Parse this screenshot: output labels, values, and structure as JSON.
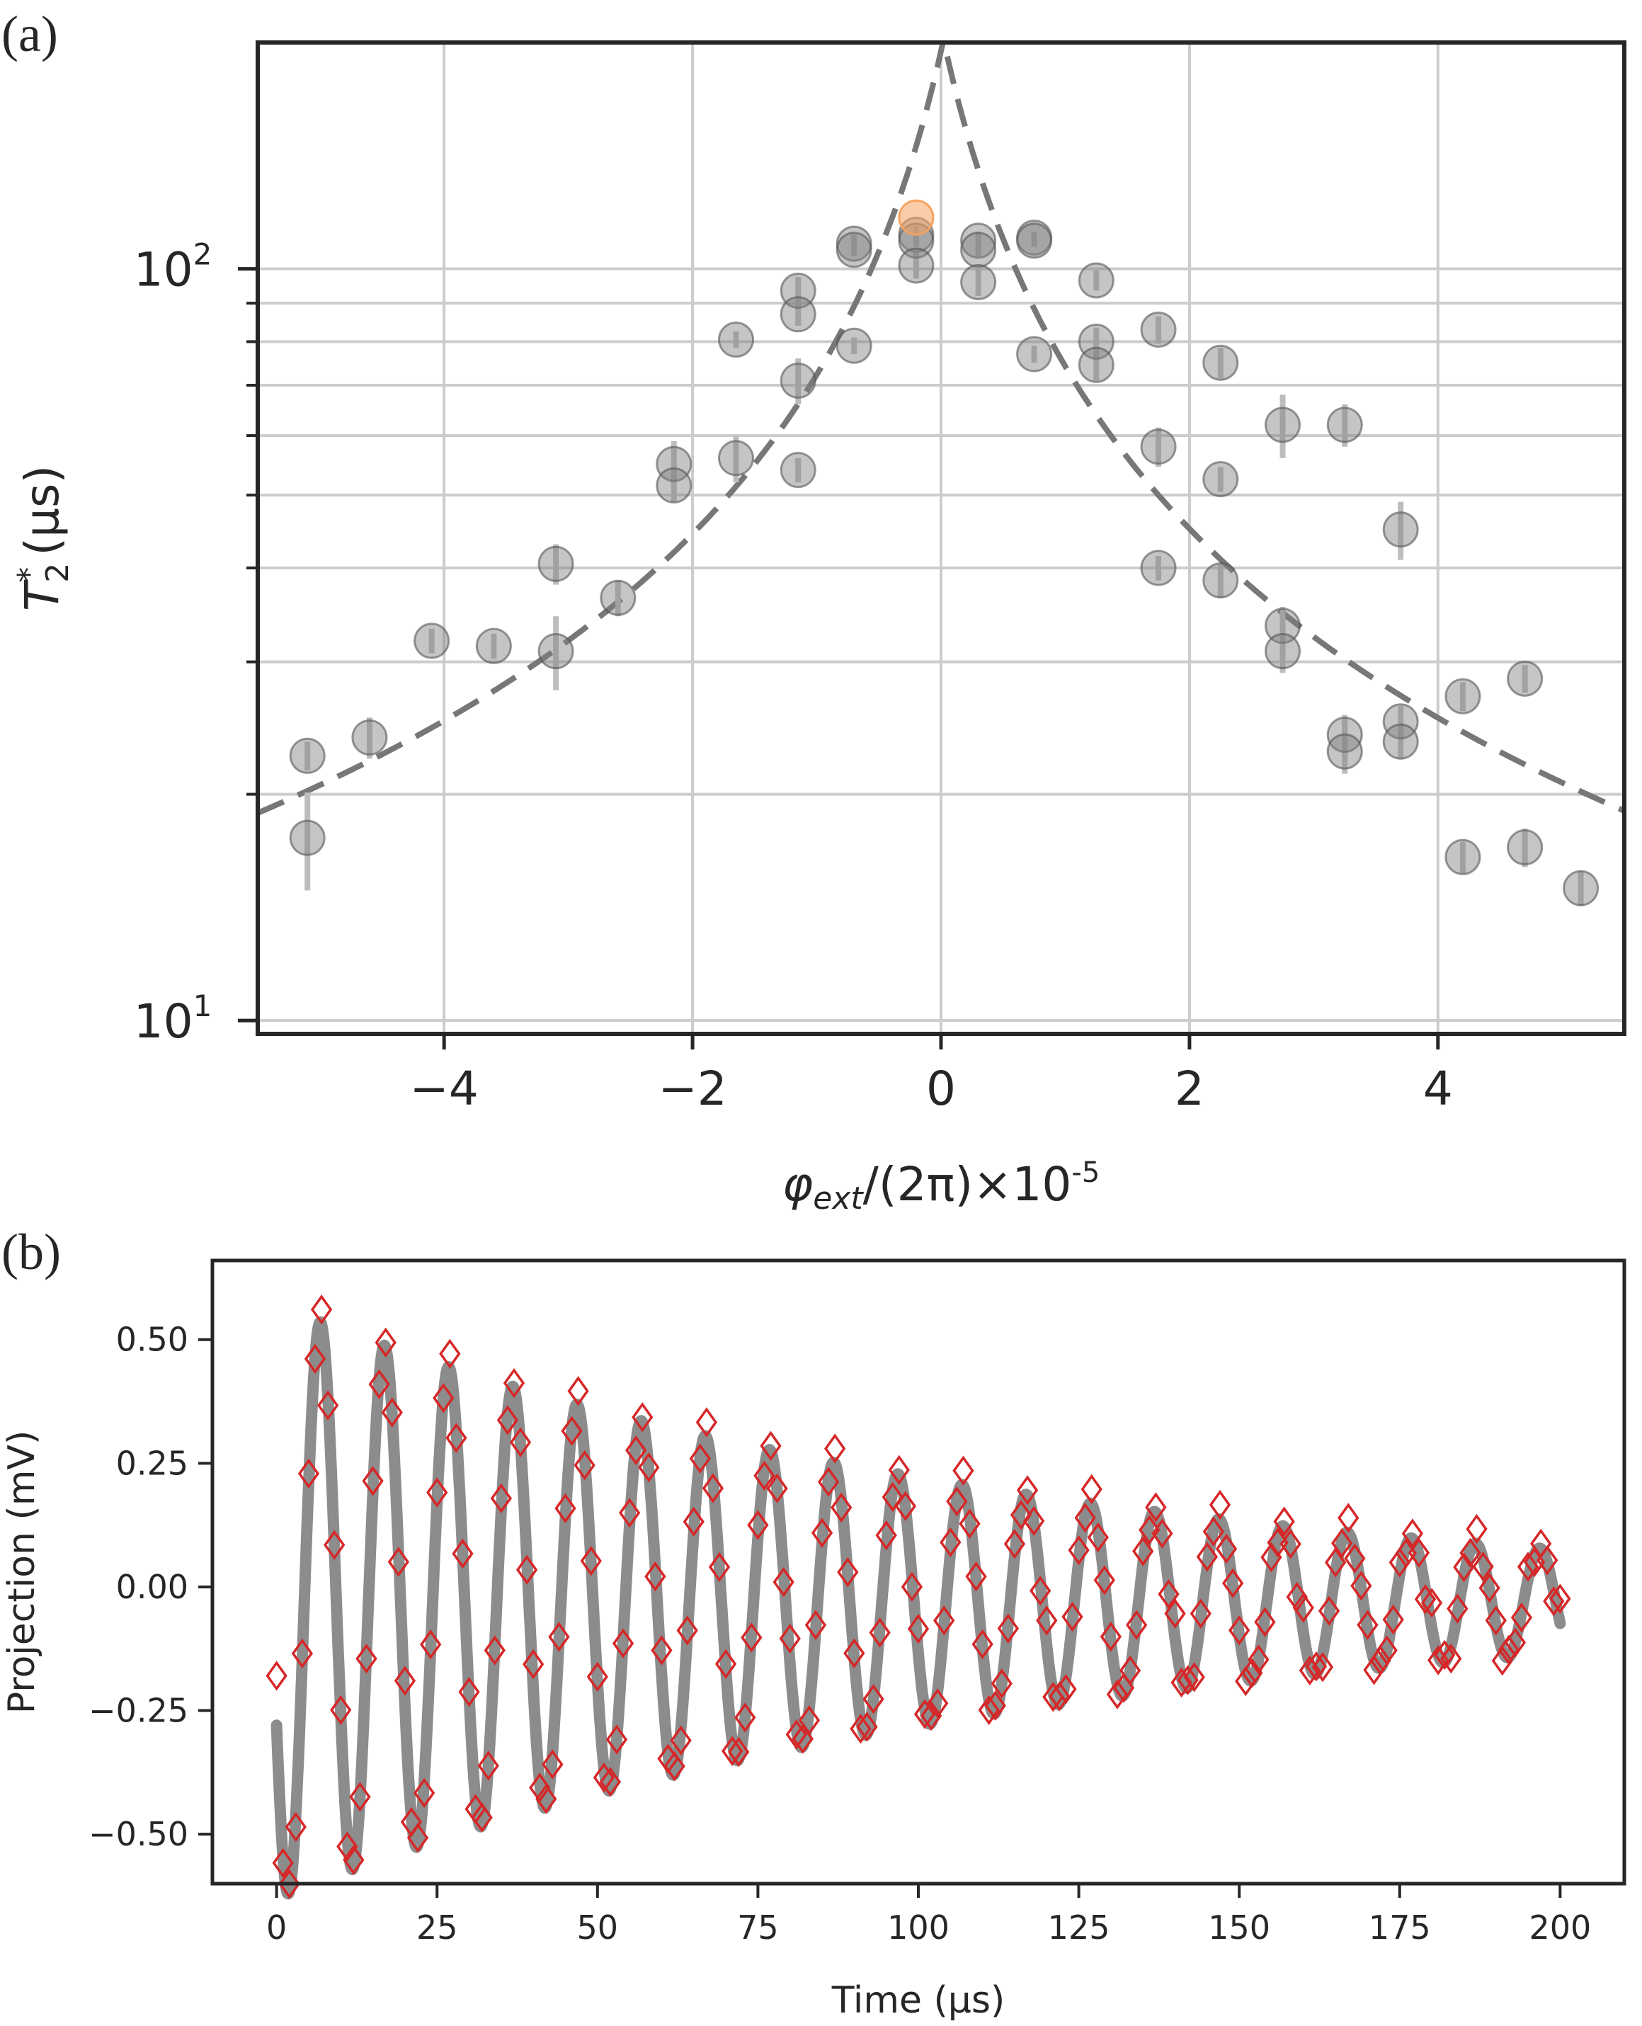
{
  "chart_data": [
    {
      "panel_label": "(a)",
      "type": "scatter",
      "xlabel": {
        "main": "φ",
        "sub": "ext",
        "rest": "/(2π)×10",
        "exp": "-5"
      },
      "ylabel": {
        "main": "T",
        "sub": "2",
        "sup": "*",
        "unit": "(μs)"
      },
      "yscale": "log",
      "xlim": [
        -5.5,
        5.5
      ],
      "ylim": [
        9.6,
        200
      ],
      "xticks": [
        -4,
        -2,
        0,
        2,
        4
      ],
      "xtick_labels": [
        "−4",
        "−2",
        "0",
        "2",
        "4"
      ],
      "yticks_major": [
        10,
        100
      ],
      "ytick_labels": [
        {
          "base": "10",
          "exp": "1"
        },
        {
          "base": "10",
          "exp": "2"
        }
      ],
      "yticks_minor": [
        20,
        30,
        40,
        50,
        60,
        70,
        80,
        90
      ],
      "grid": true,
      "points": [
        {
          "x": -5.1,
          "y": 22.5,
          "err": 1.0
        },
        {
          "x": -5.1,
          "y": 17.5,
          "err": 2.6
        },
        {
          "x": -4.6,
          "y": 23.8,
          "err": 1.5
        },
        {
          "x": -4.1,
          "y": 32.0,
          "err": 1.2
        },
        {
          "x": -3.6,
          "y": 31.5,
          "err": 1.2
        },
        {
          "x": -3.1,
          "y": 40.5,
          "err": 2.5
        },
        {
          "x": -3.1,
          "y": 31.0,
          "err": 3.5
        },
        {
          "x": -2.6,
          "y": 36.5,
          "err": 2.0
        },
        {
          "x": -2.15,
          "y": 55.0,
          "err": 4.0
        },
        {
          "x": -2.15,
          "y": 51.5,
          "err": 2.5
        },
        {
          "x": -1.65,
          "y": 80.5,
          "err": 2.0
        },
        {
          "x": -1.65,
          "y": 56.0,
          "err": 4.0
        },
        {
          "x": -1.15,
          "y": 93.5,
          "err": 4.0
        },
        {
          "x": -1.15,
          "y": 87.0,
          "err": 3.0
        },
        {
          "x": -1.15,
          "y": 71.0,
          "err": 5.0
        },
        {
          "x": -1.15,
          "y": 54.0,
          "err": 2.0
        },
        {
          "x": -0.7,
          "y": 108.0,
          "err": 3.0
        },
        {
          "x": -0.7,
          "y": 106.0,
          "err": 2.0
        },
        {
          "x": -0.7,
          "y": 79.0,
          "err": 2.0
        },
        {
          "x": -0.2,
          "y": 111.0,
          "err": 3.0
        },
        {
          "x": -0.2,
          "y": 109.0,
          "err": 2.0
        },
        {
          "x": -0.2,
          "y": 101.0,
          "err": 4.0
        },
        {
          "x": 0.3,
          "y": 109.0,
          "err": 3.0
        },
        {
          "x": 0.3,
          "y": 106.0,
          "err": 2.0
        },
        {
          "x": 0.3,
          "y": 96.0,
          "err": 4.0
        },
        {
          "x": 0.75,
          "y": 110.0,
          "err": 2.0
        },
        {
          "x": 0.75,
          "y": 109.0,
          "err": 2.0
        },
        {
          "x": 0.75,
          "y": 77.0,
          "err": 2.0
        },
        {
          "x": 1.25,
          "y": 96.5,
          "err": 3.0
        },
        {
          "x": 1.25,
          "y": 80.0,
          "err": 3.5
        },
        {
          "x": 1.25,
          "y": 74.5,
          "err": 3.5
        },
        {
          "x": 1.75,
          "y": 83.0,
          "err": 3.5
        },
        {
          "x": 1.75,
          "y": 58.0,
          "err": 3.5
        },
        {
          "x": 1.75,
          "y": 40.0,
          "err": 1.5
        },
        {
          "x": 2.25,
          "y": 75.0,
          "err": 3.5
        },
        {
          "x": 2.25,
          "y": 52.5,
          "err": 2.0
        },
        {
          "x": 2.25,
          "y": 38.5,
          "err": 2.0
        },
        {
          "x": 2.75,
          "y": 62.0,
          "err": 6.0
        },
        {
          "x": 2.75,
          "y": 33.5,
          "err": 2.0
        },
        {
          "x": 2.75,
          "y": 31.0,
          "err": 2.0
        },
        {
          "x": 3.25,
          "y": 62.0,
          "err": 4.0
        },
        {
          "x": 3.25,
          "y": 24.0,
          "err": 1.5
        },
        {
          "x": 3.25,
          "y": 22.8,
          "err": 1.5
        },
        {
          "x": 3.7,
          "y": 45.0,
          "err": 4.0
        },
        {
          "x": 3.7,
          "y": 25.0,
          "err": 1.2
        },
        {
          "x": 3.7,
          "y": 23.5,
          "err": 1.2
        },
        {
          "x": 4.2,
          "y": 27.0,
          "err": 1.2
        },
        {
          "x": 4.2,
          "y": 16.5,
          "err": 0.8
        },
        {
          "x": 4.7,
          "y": 28.5,
          "err": 1.2
        },
        {
          "x": 4.7,
          "y": 17.0,
          "err": 1.0
        },
        {
          "x": 5.15,
          "y": 15.0,
          "err": 0.8
        }
      ],
      "highlight_point": {
        "x": -0.2,
        "y": 117,
        "color": "#f5a361"
      },
      "fit_curve": {
        "style": "dashed",
        "form": "T = A / (|x - x0| + c)",
        "A": 115,
        "x0": 0.02,
        "c": 0.57
      },
      "colors": {
        "point": "#7f7f7f",
        "errorbar": "#bdbdbd",
        "fit": "#777777",
        "grid": "#cccccc",
        "frame": "#262626"
      }
    },
    {
      "panel_label": "(b)",
      "type": "scatter",
      "xlabel": "Time (μs)",
      "ylabel": "Projection (mV)",
      "xlim": [
        -10,
        210
      ],
      "ylim": [
        -0.6,
        0.66
      ],
      "xticks": [
        0,
        25,
        50,
        75,
        100,
        125,
        150,
        175,
        200
      ],
      "xtick_labels": [
        "0",
        "25",
        "50",
        "75",
        "100",
        "125",
        "150",
        "175",
        "200"
      ],
      "yticks": [
        -0.5,
        -0.25,
        0.0,
        0.25,
        0.5
      ],
      "ytick_labels": [
        "−0.50",
        "−0.25",
        "0.00",
        "0.25",
        "0.50"
      ],
      "grid": false,
      "model": {
        "form": "y = offset + A·exp(-t/T2)·cos(2πf·t + phase)",
        "offset": -0.03,
        "A": 0.6,
        "T2": 115,
        "frequency_per_us": 0.1,
        "phase": 2.0
      },
      "data_x_start": 0,
      "data_x_stop": 200,
      "data_n": 201,
      "noise": [
        0.1,
        -0.02,
        0.03,
        -0.05,
        0.02,
        0.04,
        -0.01,
        0.06,
        -0.03,
        0.01,
        0.02,
        -0.04,
        0.03,
        0.0,
        -0.02,
        0.05,
        -0.03,
        0.02,
        0.01,
        -0.04
      ],
      "colors": {
        "model": "#8c8c8c",
        "marker": "#d62728",
        "frame": "#262626"
      }
    }
  ]
}
